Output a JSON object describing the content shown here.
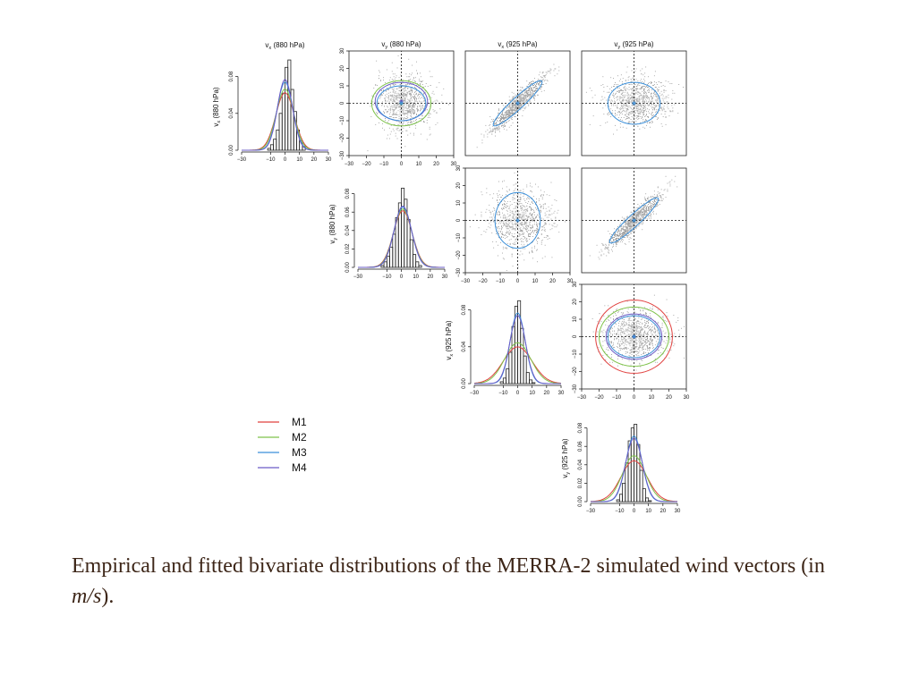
{
  "caption": {
    "text": "Empirical and fitted bivariate distributions of the MERRA-2 simulated wind vectors (in ",
    "unit": "m/s",
    "end": ")."
  },
  "colors": {
    "M1": "#e0413f",
    "M2": "#7ec24a",
    "M3": "#3b8fd9",
    "M4": "#6a5bc6",
    "hist": "#222222",
    "cloud": "#999999"
  },
  "chart_data": {
    "type": "scatter-matrix",
    "variables": [
      {
        "label": "v",
        "sub": "x",
        "level": " (880 hPa)"
      },
      {
        "label": "v",
        "sub": "y",
        "level": " (880 hPa)"
      },
      {
        "label": "v",
        "sub": "x",
        "level": " (925 hPa)"
      },
      {
        "label": "v",
        "sub": "y",
        "level": " (925 hPa)"
      }
    ],
    "axis_range": [
      -30,
      30
    ],
    "axis_ticks": [
      -30,
      -20,
      -10,
      0,
      10,
      20,
      30
    ],
    "hist_xticks": [
      -30,
      -10,
      0,
      10,
      20,
      30
    ],
    "density_ticks": [
      0.0,
      0.02,
      0.04,
      0.06,
      0.08
    ],
    "density_tick_labels": [
      "0.00",
      "0.02",
      "0.04",
      "0.06",
      "0.08"
    ],
    "legend": [
      "M1",
      "M2",
      "M3",
      "M4"
    ],
    "histograms": [
      {
        "var": 0,
        "yticks": [
          0.0,
          0.04,
          0.08
        ],
        "bins": [
          -12,
          -10,
          -8,
          -6,
          -4,
          -2,
          0,
          2,
          4,
          6,
          8,
          10,
          12,
          14
        ],
        "density": [
          0.002,
          0.006,
          0.012,
          0.022,
          0.04,
          0.062,
          0.09,
          0.098,
          0.066,
          0.042,
          0.022,
          0.01,
          0.004
        ],
        "curves": [
          {
            "model": "M1",
            "mean": 0,
            "sd": 6.4
          },
          {
            "model": "M2",
            "mean": 0,
            "sd": 6.0
          },
          {
            "model": "M3",
            "mean": 0,
            "sd": 5.4
          },
          {
            "model": "M4",
            "mean": 0,
            "sd": 5.2
          }
        ]
      },
      {
        "var": 1,
        "yticks": [
          0.0,
          0.02,
          0.04,
          0.06,
          0.08
        ],
        "bins": [
          -14,
          -12,
          -10,
          -8,
          -6,
          -4,
          -2,
          0,
          2,
          4,
          6,
          8,
          10,
          12,
          14
        ],
        "density": [
          0.002,
          0.006,
          0.012,
          0.022,
          0.036,
          0.054,
          0.07,
          0.086,
          0.074,
          0.052,
          0.03,
          0.014,
          0.006,
          0.002
        ],
        "curves": [
          {
            "model": "M1",
            "mean": 1,
            "sd": 6.5
          },
          {
            "model": "M2",
            "mean": 1,
            "sd": 6.3
          },
          {
            "model": "M3",
            "mean": 1,
            "sd": 6.1
          },
          {
            "model": "M4",
            "mean": 1,
            "sd": 6.0
          }
        ]
      },
      {
        "var": 2,
        "yticks": [
          0.0,
          0.04,
          0.08
        ],
        "bins": [
          -12,
          -10,
          -8,
          -6,
          -4,
          -2,
          0,
          2,
          4,
          6,
          8,
          10,
          12
        ],
        "density": [
          0.002,
          0.006,
          0.016,
          0.034,
          0.062,
          0.084,
          0.09,
          0.06,
          0.03,
          0.012,
          0.004,
          0.001
        ],
        "curves": [
          {
            "model": "M1",
            "mean": 0,
            "sd": 10
          },
          {
            "model": "M2",
            "mean": 0,
            "sd": 9
          },
          {
            "model": "M3",
            "mean": 0,
            "sd": 5.2
          },
          {
            "model": "M4",
            "mean": 0,
            "sd": 5.4
          }
        ]
      },
      {
        "var": 3,
        "yticks": [
          0.0,
          0.02,
          0.04,
          0.06,
          0.08
        ],
        "bins": [
          -12,
          -10,
          -8,
          -6,
          -4,
          -2,
          0,
          2,
          4,
          6,
          8,
          10,
          12
        ],
        "density": [
          0.002,
          0.008,
          0.02,
          0.042,
          0.066,
          0.08,
          0.084,
          0.062,
          0.034,
          0.014,
          0.004,
          0.001
        ],
        "curves": [
          {
            "model": "M1",
            "mean": 0,
            "sd": 9
          },
          {
            "model": "M2",
            "mean": 0,
            "sd": 8
          },
          {
            "model": "M3",
            "mean": 0,
            "sd": 5.6
          },
          {
            "model": "M4",
            "mean": 0,
            "sd": 5.8
          }
        ]
      }
    ],
    "scatters": [
      {
        "row": 0,
        "col": 1,
        "cloud": {
          "cx": 2,
          "cy": 1,
          "sx": 8,
          "sy": 8,
          "rho": 0.0
        },
        "ellipses": [
          {
            "model": "M2",
            "cx": 0,
            "cy": 0,
            "sx": 17,
            "sy": 13,
            "rho": 0.0
          },
          {
            "model": "M4",
            "cx": 0,
            "cy": 1,
            "sx": 15,
            "sy": 11,
            "rho": 0.0
          },
          {
            "model": "M3",
            "cx": 0,
            "cy": 0,
            "sx": 14,
            "sy": 10,
            "rho": 0.0
          }
        ]
      },
      {
        "row": 0,
        "col": 2,
        "cloud": {
          "cx": 0,
          "cy": 0,
          "sx": 8,
          "sy": 8,
          "rho": 0.93
        },
        "ellipses": [
          {
            "model": "M3",
            "cx": 0,
            "cy": 0,
            "sx": 14,
            "sy": 13,
            "rho": 0.94
          }
        ]
      },
      {
        "row": 0,
        "col": 3,
        "cloud": {
          "cx": 1,
          "cy": 1,
          "sx": 9,
          "sy": 7,
          "rho": 0.0
        },
        "ellipses": [
          {
            "model": "M3",
            "cx": 0,
            "cy": 0,
            "sx": 15,
            "sy": 12,
            "rho": 0.0
          }
        ]
      },
      {
        "row": 1,
        "col": 2,
        "cloud": {
          "cx": 1,
          "cy": 1,
          "sx": 9,
          "sy": 9,
          "rho": 0.0
        },
        "ellipses": [
          {
            "model": "M3",
            "cx": 0,
            "cy": 0,
            "sx": 13,
            "sy": 16,
            "rho": 0.0
          }
        ]
      },
      {
        "row": 1,
        "col": 3,
        "cloud": {
          "cx": 0,
          "cy": 0,
          "sx": 8,
          "sy": 8,
          "rho": 0.93
        },
        "ellipses": [
          {
            "model": "M3",
            "cx": 0,
            "cy": 0,
            "sx": 14,
            "sy": 13,
            "rho": 0.94
          }
        ]
      },
      {
        "row": 2,
        "col": 3,
        "cloud": {
          "cx": 1,
          "cy": 1,
          "sx": 9,
          "sy": 7,
          "rho": 0.0
        },
        "ellipses": [
          {
            "model": "M1",
            "cx": 0,
            "cy": 0,
            "sx": 22,
            "sy": 21,
            "rho": 0.0
          },
          {
            "model": "M2",
            "cx": 0,
            "cy": 0,
            "sx": 20,
            "sy": 17,
            "rho": 0.0
          },
          {
            "model": "M4",
            "cx": 0,
            "cy": 0,
            "sx": 16,
            "sy": 13,
            "rho": 0.0
          },
          {
            "model": "M3",
            "cx": 0,
            "cy": 0,
            "sx": 15,
            "sy": 12,
            "rho": 0.0
          }
        ]
      }
    ]
  }
}
